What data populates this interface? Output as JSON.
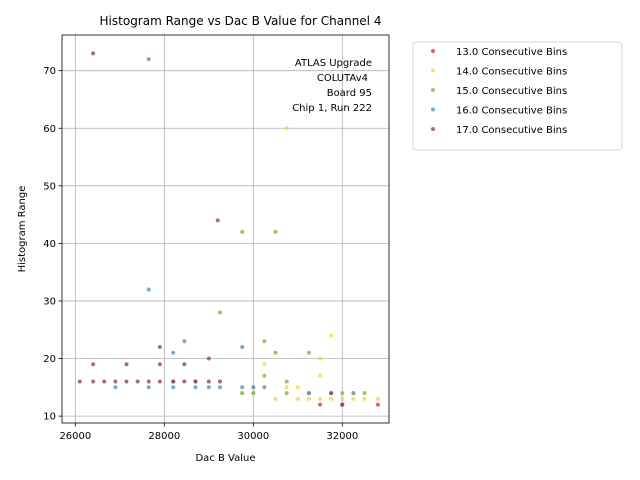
{
  "chart_data": {
    "type": "scatter",
    "title": "Histogram Range vs Dac B Value for Channel 4",
    "xlabel": "Dac B Value",
    "ylabel": "Histogram Range",
    "xlim": [
      25700,
      33050
    ],
    "ylim": [
      8.8,
      76.2
    ],
    "xticks": [
      26000,
      28000,
      30000,
      32000
    ],
    "yticks": [
      10,
      20,
      30,
      40,
      50,
      60,
      70
    ],
    "grid": true,
    "legend_position": "outside-top-right",
    "annotation": [
      "ATLAS Upgrade",
      "COLUTAv4",
      "Board 95",
      "Chip 1, Run 222"
    ],
    "series": [
      {
        "name": "13.0 Consecutive Bins",
        "color": "#e8232a",
        "points": [
          [
            31500,
            12
          ],
          [
            32000,
            12
          ],
          [
            32800,
            12
          ]
        ]
      },
      {
        "name": "14.0 Consecutive Bins",
        "color": "#f9d23c",
        "points": [
          [
            30750,
            60
          ],
          [
            31750,
            24
          ],
          [
            31500,
            20
          ],
          [
            30250,
            19
          ],
          [
            31500,
            17
          ],
          [
            30000,
            15
          ],
          [
            30750,
            15
          ],
          [
            31000,
            15
          ],
          [
            29750,
            14
          ],
          [
            30000,
            14
          ],
          [
            31750,
            14
          ],
          [
            32250,
            14
          ],
          [
            30500,
            13
          ],
          [
            31000,
            13
          ],
          [
            31250,
            13
          ],
          [
            31500,
            13
          ],
          [
            31750,
            13
          ],
          [
            32000,
            13
          ],
          [
            32250,
            13
          ],
          [
            32500,
            13
          ],
          [
            32800,
            13
          ]
        ]
      },
      {
        "name": "15.0 Consecutive Bins",
        "color": "#76b041",
        "points": [
          [
            29750,
            42
          ],
          [
            30500,
            42
          ],
          [
            29250,
            28
          ],
          [
            30250,
            23
          ],
          [
            30500,
            21
          ],
          [
            31250,
            21
          ],
          [
            30250,
            17
          ],
          [
            30750,
            16
          ],
          [
            29750,
            14
          ],
          [
            30000,
            14
          ],
          [
            31250,
            14
          ],
          [
            31750,
            14
          ],
          [
            32000,
            14
          ],
          [
            32500,
            14
          ],
          [
            30750,
            14
          ]
        ]
      },
      {
        "name": "16.0 Consecutive Bins",
        "color": "#4c8bbf",
        "points": [
          [
            27650,
            72
          ],
          [
            27650,
            32
          ],
          [
            28450,
            23
          ],
          [
            29750,
            22
          ],
          [
            28200,
            21
          ],
          [
            26900,
            15
          ],
          [
            27650,
            15
          ],
          [
            28200,
            15
          ],
          [
            28700,
            15
          ],
          [
            29000,
            15
          ],
          [
            29250,
            15
          ],
          [
            29750,
            15
          ],
          [
            30000,
            15
          ],
          [
            30250,
            15
          ],
          [
            28200,
            16
          ],
          [
            28700,
            16
          ],
          [
            31250,
            14
          ],
          [
            32250,
            14
          ]
        ]
      },
      {
        "name": "17.0 Consecutive Bins",
        "color": "#8b3a5c",
        "points": [
          [
            26400,
            73
          ],
          [
            29200,
            44
          ],
          [
            27900,
            22
          ],
          [
            29000,
            20
          ],
          [
            26400,
            19
          ],
          [
            27150,
            19
          ],
          [
            27900,
            19
          ],
          [
            28450,
            19
          ],
          [
            26100,
            16
          ],
          [
            26400,
            16
          ],
          [
            26650,
            16
          ],
          [
            26900,
            16
          ],
          [
            27150,
            16
          ],
          [
            27400,
            16
          ],
          [
            27650,
            16
          ],
          [
            27900,
            16
          ],
          [
            28200,
            16
          ],
          [
            28450,
            16
          ],
          [
            28700,
            16
          ],
          [
            29000,
            16
          ],
          [
            29250,
            16
          ],
          [
            31750,
            14
          ],
          [
            32000,
            12
          ]
        ]
      }
    ]
  }
}
